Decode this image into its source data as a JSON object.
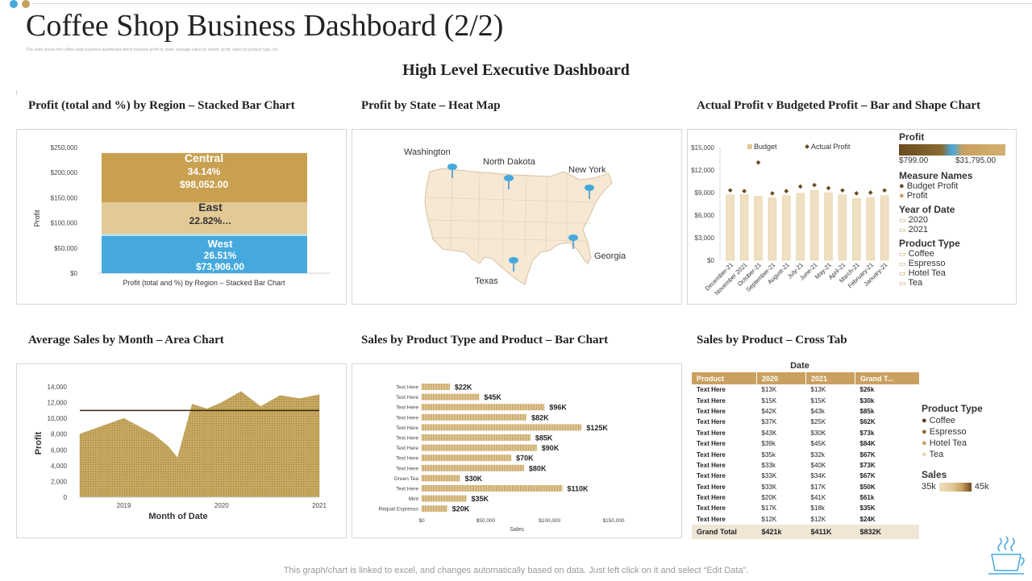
{
  "page": {
    "title": "Coffee Shop Business Dashboard (2/2)",
    "subtitle": "This slide shows the coffee shop business dashboard which includes profit by state, average sales by month, profit, sales by product type, etc.",
    "exec_title": "High Level Executive Dashboard",
    "footer": "This graph/chart is linked to excel,  and changes automatically based on data. Just left click on it and select “Edit Data”."
  },
  "colors": {
    "gold": "#c9a060",
    "light_gold": "#e2c996",
    "blue": "#45a9de",
    "brown": "#6b4a1f",
    "area": "#c8a960",
    "map": "#f6e8d3"
  },
  "panels": {
    "region": {
      "title": "Profit (total and %) by Region – Stacked Bar Chart",
      "yaxis_label": "Profit",
      "xaxis_label": "Profit (total and %) by Region – Stacked Bar Chart",
      "yticks": [
        "$250,000",
        "$200,000",
        "$150,000",
        "$100,000",
        "$50,000",
        "$0"
      ],
      "segments": [
        {
          "name": "Central",
          "pct": "34.14%",
          "value": "$98,052.00"
        },
        {
          "name": "East",
          "pct": "22.82%…",
          "value": ""
        },
        {
          "name": "West",
          "pct": "26.51%",
          "value": "$73,906.00"
        }
      ]
    },
    "heatmap": {
      "title": "Profit by State – Heat Map",
      "states": [
        "Washington",
        "North Dakota",
        "New York",
        "Georgia",
        "Texas"
      ]
    },
    "budget": {
      "title": "Actual Profit v Budgeted Profit – Bar and Shape Chart",
      "legend_budget": "Budget",
      "legend_actual": "Actual Profit",
      "yticks": [
        "$15,000",
        "$12,000",
        "$9,000",
        "$6,000",
        "$3,000",
        "$0"
      ],
      "months": [
        "December-21",
        "November 2021",
        "October-21",
        "September-21",
        "August-21",
        "July-21",
        "June-21",
        "May-21",
        "April-21",
        "March-21",
        "February-21",
        "January-21"
      ],
      "side": {
        "profit_hdr": "Profit",
        "profit_min": "$799.00",
        "profit_max": "$31,795.00",
        "measure_hdr": "Measure Names",
        "measures": [
          "Budget Profit",
          "Profit"
        ],
        "year_hdr": "Year of Date",
        "years": [
          "2020",
          "2021"
        ],
        "ptype_hdr": "Product Type",
        "ptypes": [
          "Coffee",
          "Espresso",
          "Hotel Tea",
          "Tea"
        ]
      }
    },
    "area": {
      "title": "Average Sales by Month – Area Chart",
      "yaxis_label": "Profit",
      "xaxis_label": "Month of Date",
      "yticks": [
        "14,000",
        "12,000",
        "10,000",
        "8,000",
        "6,000",
        "4,000",
        "2,000",
        "0"
      ],
      "xticks": [
        "2019",
        "2020",
        "2021"
      ]
    },
    "bars": {
      "title": "Sales by Product Type and Product – Bar Chart",
      "rows": [
        {
          "label": "Text Here",
          "value": "$22K"
        },
        {
          "label": "Text Here",
          "value": "$45K"
        },
        {
          "label": "Text Here",
          "value": "$96K"
        },
        {
          "label": "Text Here",
          "value": "$82K"
        },
        {
          "label": "Text Here",
          "value": "$125K"
        },
        {
          "label": "Text Here",
          "value": "$85K"
        },
        {
          "label": "Text Here",
          "value": "$90K"
        },
        {
          "label": "Text Here",
          "value": "$70K"
        },
        {
          "label": "Text Here",
          "value": "$80K"
        },
        {
          "label": "Green Tea",
          "value": "$30K"
        },
        {
          "label": "Text Here",
          "value": "$110K"
        },
        {
          "label": "Mint",
          "value": "$35K"
        },
        {
          "label": "Requal Espresso",
          "value": "$20K"
        }
      ],
      "xticks": [
        "$0",
        "$50,000",
        "$100,000",
        "$150,000"
      ],
      "xaxis_label": "Sales"
    },
    "crosstab": {
      "title": "Sales by Product – Cross Tab",
      "date_hdr": "Date",
      "columns": [
        "Product",
        "2020",
        "2021",
        "Grand T..."
      ],
      "rows": [
        [
          "Text Here",
          "$13K",
          "$13K",
          "$26k"
        ],
        [
          "Text Here",
          "$15K",
          "$15K",
          "$30k"
        ],
        [
          "Text Here",
          "$42K",
          "$43k",
          "$85k"
        ],
        [
          "Text Here",
          "$37K",
          "$25K",
          "$62K"
        ],
        [
          "Text Here",
          "$43K",
          "$30K",
          "$73k"
        ],
        [
          "Text Here",
          "$39k",
          "$45K",
          "$84K"
        ],
        [
          "Text Here",
          "$35k",
          "$32k",
          "$67K"
        ],
        [
          "Text Here",
          "$33k",
          "$40K",
          "$73K"
        ],
        [
          "Text Here",
          "$33K",
          "$34K",
          "$67K"
        ],
        [
          "Text Here",
          "$33K",
          "$17K",
          "$50K"
        ],
        [
          "Text Here",
          "$20K",
          "$41K",
          "$61k"
        ],
        [
          "Text Here",
          "$17K",
          "$18k",
          "$35K"
        ],
        [
          "Text Here",
          "$12K",
          "$12K",
          "$24K"
        ]
      ],
      "total": [
        "Grand Total",
        "$421k",
        "$411K",
        "$832K"
      ],
      "ptype_hdr": "Product Type",
      "ptypes": [
        "Coffee",
        "Espresso",
        "Hotel Tea",
        "Tea"
      ],
      "sales_hdr": "Sales",
      "sales_min": "35k",
      "sales_max": "45k"
    }
  },
  "chart_data": [
    {
      "type": "bar",
      "title": "Profit (total and %) by Region – Stacked Bar Chart",
      "ylabel": "Profit",
      "ylim": [
        0,
        250000
      ],
      "series": [
        {
          "name": "West",
          "values": [
            73906
          ]
        },
        {
          "name": "East",
          "values": [
            63000
          ]
        },
        {
          "name": "Central",
          "values": [
            98052
          ]
        }
      ]
    },
    {
      "type": "bar",
      "title": "Actual Profit v Budgeted Profit – Bar and Shape Chart",
      "ylim": [
        0,
        15000
      ],
      "categories": [
        "December-21",
        "November 2021",
        "October-21",
        "September-21",
        "August-21",
        "July-21",
        "June-21",
        "May-21",
        "April-21",
        "March-21",
        "February-21",
        "January-21"
      ],
      "series": [
        {
          "name": "Budget",
          "values": [
            8700,
            8700,
            8500,
            8300,
            8600,
            8900,
            9300,
            9000,
            8700,
            8200,
            8300,
            8600
          ]
        },
        {
          "name": "Actual Profit",
          "values": [
            9300,
            9200,
            13000,
            8900,
            9200,
            9800,
            10000,
            9600,
            9300,
            8900,
            9000,
            9300
          ]
        }
      ]
    },
    {
      "type": "area",
      "title": "Average Sales by Month – Area Chart",
      "xlabel": "Month of Date",
      "ylabel": "Profit",
      "ylim": [
        0,
        14000
      ],
      "x": [
        2018.55,
        2019.0,
        2019.3,
        2019.45,
        2019.55,
        2019.7,
        2019.85,
        2020.0,
        2020.2,
        2020.4,
        2020.6,
        2020.8,
        2021.0
      ],
      "series": [
        {
          "name": "Average Sales",
          "values": [
            8000,
            10000,
            8000,
            6500,
            5000,
            11800,
            11200,
            12000,
            13400,
            11500,
            12900,
            12500,
            13000
          ]
        }
      ],
      "reference_line": 11000
    },
    {
      "type": "bar",
      "title": "Sales by Product Type and Product – Bar Chart",
      "xlabel": "Sales",
      "xlim": [
        0,
        150000
      ],
      "categories": [
        "Text Here",
        "Text Here",
        "Text Here",
        "Text Here",
        "Text Here",
        "Text Here",
        "Text Here",
        "Text Here",
        "Text Here",
        "Green Tea",
        "Text Here",
        "Mint",
        "Requal Espresso"
      ],
      "values": [
        22000,
        45000,
        96000,
        82000,
        125000,
        85000,
        90000,
        70000,
        80000,
        30000,
        110000,
        35000,
        20000
      ]
    }
  ]
}
